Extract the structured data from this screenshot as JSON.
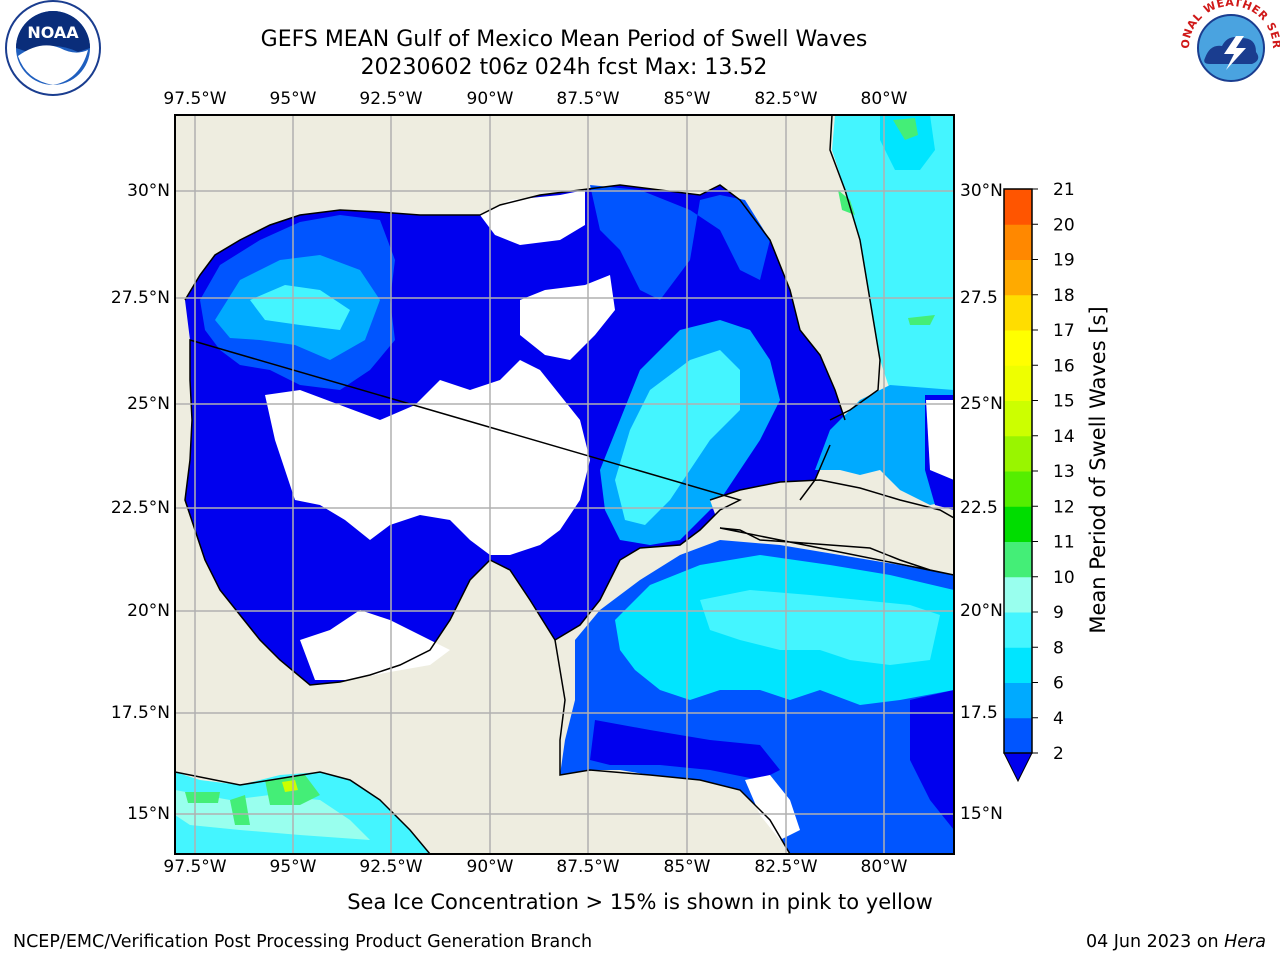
{
  "title_line1": "GEFS MEAN Gulf of Mexico Mean Period of Swell Waves",
  "title_line2": "20230602 t06z 024h fcst   Max: 13.52",
  "bottom_note": "Sea Ice Concentration > 15% is shown in pink to yellow",
  "footer_left": "NCEP/EMC/Verification Post Processing Product Generation Branch",
  "footer_right_date": "04 Jun 2023 on ",
  "footer_right_host": "Hera",
  "logos": {
    "left": "noaa-logo",
    "right": "national-weather-service-logo"
  },
  "logo_text": {
    "noaa": "NOAA",
    "nws_ring": "NATIONAL WEATHER SERVICE"
  },
  "map": {
    "lon_ticks_top": [
      "97.5°W",
      "95°W",
      "92.5°W",
      "90°W",
      "87.5°W",
      "85°W",
      "82.5°W",
      "80°W"
    ],
    "lon_ticks_bottom": [
      "97.5°W",
      "95°W",
      "92.5°W",
      "90°W",
      "87.5°W",
      "85°W",
      "82.5°W",
      "80°W"
    ],
    "lat_ticks_left": [
      "30°N",
      "27.5°N",
      "25°N",
      "22.5°N",
      "20°N",
      "17.5°N",
      "15°N"
    ],
    "lat_ticks_right": [
      "30°N",
      "27.5",
      "25°N",
      "22.5",
      "20°N",
      "17.5",
      "15°N"
    ],
    "lon_range": [
      -98,
      -78.2
    ],
    "lat_range": [
      14,
      31.8
    ],
    "land_color": "#eeede0",
    "grid_color": "#b0b0b0"
  },
  "colorbar": {
    "label": "Mean Period of Swell Waves [s]",
    "ticks": [
      "2",
      "4",
      "6",
      "8",
      "9",
      "10",
      "11",
      "12",
      "13",
      "14",
      "15",
      "16",
      "17",
      "18",
      "19",
      "20",
      "21"
    ],
    "colors": [
      "#0055ff",
      "#00aaff",
      "#00e5ff",
      "#44f5ff",
      "#99ffee",
      "#44ee77",
      "#00dd00",
      "#55ee00",
      "#99f500",
      "#ccff00",
      "#eeff00",
      "#ffff00",
      "#ffdd00",
      "#ffaa00",
      "#ff8800",
      "#ff5500",
      "#ff2200"
    ],
    "extend_color": "#0000ee"
  },
  "chart_data": {
    "type": "heatmap",
    "title": "GEFS MEAN Gulf of Mexico Mean Period of Swell Waves",
    "subtitle": "20230602 t06z 024h fcst   Max: 13.52",
    "variable_units": "s",
    "max": 13.52,
    "levels": [
      2,
      4,
      6,
      8,
      9,
      10,
      11,
      12,
      13,
      14,
      15,
      16,
      17,
      18,
      19,
      20,
      21
    ],
    "lon_range": [
      -98,
      -78.2
    ],
    "lat_range": [
      14,
      31.8
    ]
  }
}
